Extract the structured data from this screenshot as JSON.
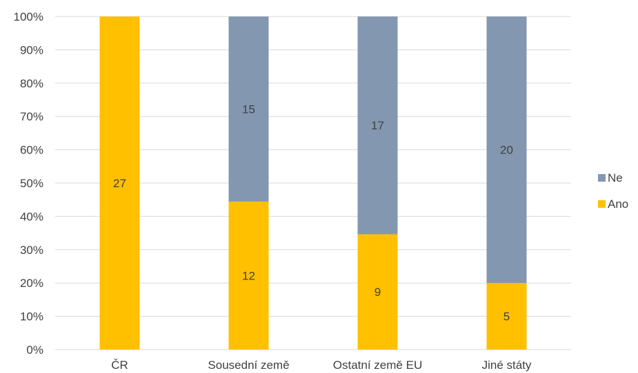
{
  "chart_data": {
    "type": "bar",
    "stacked": "percent",
    "categories": [
      "ČR",
      "Sousední země",
      "Ostatní země EU",
      "Jiné státy"
    ],
    "series": [
      {
        "name": "Ano",
        "values": [
          27,
          12,
          9,
          5
        ],
        "color": "#FFC000"
      },
      {
        "name": "Ne",
        "values": [
          0,
          15,
          17,
          20
        ],
        "color": "#8497B0"
      }
    ],
    "y_ticks": [
      "0%",
      "10%",
      "20%",
      "30%",
      "40%",
      "50%",
      "60%",
      "70%",
      "80%",
      "90%",
      "100%"
    ],
    "ylim": [
      0,
      100
    ],
    "grid": true,
    "legend_position": "right"
  }
}
